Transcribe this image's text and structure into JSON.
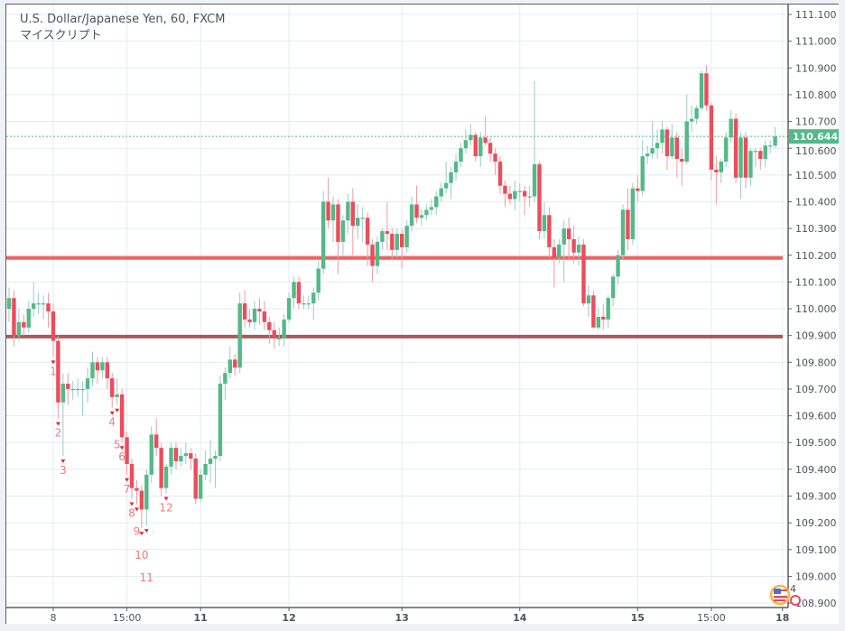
{
  "header": {
    "title": "U.S. Dollar/Japanese Yen, 60, FXCM",
    "script_name": "マイスクリプト"
  },
  "events_badge": {
    "count": "4",
    "icon": "us-flag-economic-event-icon"
  },
  "colors": {
    "up": "#53b987",
    "down": "#eb4d5c",
    "support_line": "#f05050",
    "lower_line": "#a04a4a",
    "grid": "#e3ecf3",
    "last_price": "#53b987"
  },
  "chart_data": {
    "type": "candlestick",
    "title": "U.S. Dollar/Japanese Yen, 60, FXCM",
    "ylim": [
      108.9,
      111.1
    ],
    "grid": true,
    "y_ticks": [
      "111.100",
      "111.000",
      "110.900",
      "110.800",
      "110.700",
      "110.600",
      "110.500",
      "110.400",
      "110.300",
      "110.200",
      "110.100",
      "110.000",
      "109.900",
      "109.800",
      "109.700",
      "109.600",
      "109.500",
      "109.400",
      "109.300",
      "109.200",
      "109.100",
      "109.000",
      "108.900"
    ],
    "x_ticks": [
      {
        "label": "8",
        "bar": 9,
        "bold": false
      },
      {
        "label": "15:00",
        "bar": 24,
        "bold": false
      },
      {
        "label": "11",
        "bar": 39,
        "bold": true
      },
      {
        "label": "12",
        "bar": 57,
        "bold": true
      },
      {
        "label": "13",
        "bar": 80,
        "bold": true
      },
      {
        "label": "14",
        "bar": 104,
        "bold": true
      },
      {
        "label": "15",
        "bar": 128,
        "bold": true
      },
      {
        "label": "15:00",
        "bar": 143,
        "bold": false
      },
      {
        "label": "18",
        "bar": 157.5,
        "bold": true
      }
    ],
    "last_price": "110.644",
    "horizontal_lines": [
      {
        "price": 110.19,
        "color": "#f05050"
      },
      {
        "price": 109.896,
        "color": "#a04a4a"
      }
    ],
    "signals": [
      {
        "label": "1",
        "bar": 9
      },
      {
        "label": "2",
        "bar": 10
      },
      {
        "label": "3",
        "bar": 11
      },
      {
        "label": "4",
        "bar": 21
      },
      {
        "label": "5",
        "bar": 22
      },
      {
        "label": "6",
        "bar": 23
      },
      {
        "label": "7",
        "bar": 24
      },
      {
        "label": "8",
        "bar": 25
      },
      {
        "label": "9",
        "bar": 26
      },
      {
        "label": "10",
        "bar": 27
      },
      {
        "label": "11",
        "bar": 28
      },
      {
        "label": "12",
        "bar": 32
      }
    ],
    "candles_ohlc": [
      [
        110.0,
        110.08,
        109.95,
        110.04
      ],
      [
        110.04,
        110.07,
        109.86,
        109.9
      ],
      [
        109.9,
        110.0,
        109.88,
        109.95
      ],
      [
        109.95,
        109.98,
        109.9,
        109.93
      ],
      [
        109.93,
        110.03,
        109.91,
        110.0
      ],
      [
        110.0,
        110.1,
        109.97,
        110.02
      ],
      [
        110.02,
        110.06,
        109.98,
        110.02
      ],
      [
        110.02,
        110.05,
        109.96,
        110.02
      ],
      [
        110.02,
        110.06,
        109.93,
        109.99
      ],
      [
        109.99,
        110.02,
        109.82,
        109.88
      ],
      [
        109.88,
        109.9,
        109.59,
        109.65
      ],
      [
        109.65,
        109.76,
        109.45,
        109.72
      ],
      [
        109.72,
        109.76,
        109.64,
        109.7
      ],
      [
        109.7,
        109.73,
        109.66,
        109.7
      ],
      [
        109.7,
        109.74,
        109.67,
        109.7
      ],
      [
        109.7,
        109.73,
        109.6,
        109.7
      ],
      [
        109.7,
        109.78,
        109.65,
        109.74
      ],
      [
        109.74,
        109.84,
        109.71,
        109.8
      ],
      [
        109.8,
        109.82,
        109.72,
        109.77
      ],
      [
        109.77,
        109.82,
        109.74,
        109.8
      ],
      [
        109.8,
        109.82,
        109.7,
        109.74
      ],
      [
        109.74,
        109.76,
        109.63,
        109.67
      ],
      [
        109.67,
        109.74,
        109.64,
        109.68
      ],
      [
        109.68,
        109.7,
        109.5,
        109.52
      ],
      [
        109.52,
        109.54,
        109.38,
        109.42
      ],
      [
        109.42,
        109.44,
        109.29,
        109.33
      ],
      [
        109.33,
        109.36,
        109.27,
        109.32
      ],
      [
        109.32,
        109.34,
        109.18,
        109.25
      ],
      [
        109.25,
        109.4,
        109.19,
        109.38
      ],
      [
        109.38,
        109.56,
        109.35,
        109.53
      ],
      [
        109.53,
        109.59,
        109.45,
        109.48
      ],
      [
        109.48,
        109.5,
        109.3,
        109.33
      ],
      [
        109.33,
        109.42,
        109.31,
        109.41
      ],
      [
        109.41,
        109.5,
        109.38,
        109.48
      ],
      [
        109.48,
        109.5,
        109.4,
        109.43
      ],
      [
        109.43,
        109.48,
        109.41,
        109.45
      ],
      [
        109.45,
        109.5,
        109.42,
        109.46
      ],
      [
        109.46,
        109.48,
        109.4,
        109.44
      ],
      [
        109.44,
        109.46,
        109.27,
        109.29
      ],
      [
        109.29,
        109.4,
        109.28,
        109.38
      ],
      [
        109.38,
        109.47,
        109.36,
        109.42
      ],
      [
        109.42,
        109.51,
        109.35,
        109.44
      ],
      [
        109.44,
        109.47,
        109.33,
        109.45
      ],
      [
        109.45,
        109.75,
        109.43,
        109.72
      ],
      [
        109.72,
        109.78,
        109.66,
        109.76
      ],
      [
        109.76,
        109.86,
        109.74,
        109.81
      ],
      [
        109.81,
        109.83,
        109.75,
        109.78
      ],
      [
        109.78,
        110.06,
        109.76,
        110.02
      ],
      [
        110.02,
        110.07,
        109.93,
        109.96
      ],
      [
        109.96,
        110.0,
        109.93,
        109.95
      ],
      [
        109.95,
        110.03,
        109.92,
        110.0
      ],
      [
        110.0,
        110.04,
        109.94,
        109.99
      ],
      [
        109.99,
        110.03,
        109.92,
        109.95
      ],
      [
        109.95,
        109.97,
        109.87,
        109.92
      ],
      [
        109.92,
        109.95,
        109.85,
        109.89
      ],
      [
        109.89,
        109.93,
        109.86,
        109.89
      ],
      [
        109.89,
        109.98,
        109.86,
        109.96
      ],
      [
        109.96,
        110.06,
        109.95,
        110.04
      ],
      [
        110.04,
        110.12,
        110.0,
        110.1
      ],
      [
        110.1,
        110.12,
        110.0,
        110.02
      ],
      [
        110.02,
        110.05,
        110.0,
        110.02
      ],
      [
        110.02,
        110.05,
        110.0,
        110.02
      ],
      [
        110.02,
        110.08,
        109.96,
        110.06
      ],
      [
        110.06,
        110.18,
        110.03,
        110.15
      ],
      [
        110.15,
        110.44,
        110.13,
        110.4
      ],
      [
        110.4,
        110.49,
        110.3,
        110.33
      ],
      [
        110.33,
        110.42,
        110.25,
        110.39
      ],
      [
        110.39,
        110.41,
        110.13,
        110.25
      ],
      [
        110.25,
        110.35,
        110.2,
        110.33
      ],
      [
        110.33,
        110.43,
        110.28,
        110.4
      ],
      [
        110.4,
        110.45,
        110.2,
        110.31
      ],
      [
        110.31,
        110.39,
        110.26,
        110.34
      ],
      [
        110.34,
        110.38,
        110.25,
        110.34
      ],
      [
        110.34,
        110.36,
        110.16,
        110.24
      ],
      [
        110.24,
        110.26,
        110.1,
        110.16
      ],
      [
        110.16,
        110.27,
        110.13,
        110.25
      ],
      [
        110.25,
        110.3,
        110.22,
        110.29
      ],
      [
        110.29,
        110.4,
        110.22,
        110.28
      ],
      [
        110.28,
        110.3,
        110.18,
        110.22
      ],
      [
        110.22,
        110.3,
        110.19,
        110.28
      ],
      [
        110.28,
        110.3,
        110.15,
        110.23
      ],
      [
        110.23,
        110.33,
        110.21,
        110.31
      ],
      [
        110.31,
        110.42,
        110.29,
        110.39
      ],
      [
        110.39,
        110.46,
        110.32,
        110.34
      ],
      [
        110.34,
        110.37,
        110.31,
        110.35
      ],
      [
        110.35,
        110.39,
        110.33,
        110.37
      ],
      [
        110.37,
        110.41,
        110.35,
        110.38
      ],
      [
        110.38,
        110.44,
        110.35,
        110.42
      ],
      [
        110.42,
        110.47,
        110.4,
        110.45
      ],
      [
        110.45,
        110.55,
        110.43,
        110.47
      ],
      [
        110.47,
        110.53,
        110.41,
        110.51
      ],
      [
        110.51,
        110.58,
        110.48,
        110.55
      ],
      [
        110.55,
        110.62,
        110.53,
        110.6
      ],
      [
        110.6,
        110.67,
        110.58,
        110.63
      ],
      [
        110.63,
        110.69,
        110.61,
        110.65
      ],
      [
        110.65,
        110.66,
        110.55,
        110.57
      ],
      [
        110.57,
        110.66,
        110.53,
        110.64
      ],
      [
        110.64,
        110.72,
        110.61,
        110.62
      ],
      [
        110.62,
        110.64,
        110.55,
        110.58
      ],
      [
        110.58,
        110.6,
        110.5,
        110.55
      ],
      [
        110.55,
        110.57,
        110.43,
        110.46
      ],
      [
        110.46,
        110.48,
        110.38,
        110.43
      ],
      [
        110.43,
        110.46,
        110.39,
        110.41
      ],
      [
        110.41,
        110.48,
        110.37,
        110.44
      ],
      [
        110.44,
        110.47,
        110.4,
        110.44
      ],
      [
        110.44,
        110.46,
        110.35,
        110.42
      ],
      [
        110.42,
        110.46,
        110.38,
        110.42
      ],
      [
        110.42,
        110.85,
        110.4,
        110.54
      ],
      [
        110.54,
        110.55,
        110.26,
        110.29
      ],
      [
        110.29,
        110.4,
        110.26,
        110.35
      ],
      [
        110.35,
        110.38,
        110.19,
        110.23
      ],
      [
        110.23,
        110.26,
        110.08,
        110.19
      ],
      [
        110.19,
        110.26,
        110.17,
        110.24
      ],
      [
        110.24,
        110.33,
        110.1,
        110.3
      ],
      [
        110.3,
        110.34,
        110.18,
        110.26
      ],
      [
        110.26,
        110.31,
        110.17,
        110.21
      ],
      [
        110.21,
        110.27,
        110.16,
        110.24
      ],
      [
        110.24,
        110.26,
        110.01,
        110.02
      ],
      [
        110.02,
        110.09,
        109.97,
        110.05
      ],
      [
        110.05,
        110.07,
        109.93,
        109.93
      ],
      [
        109.93,
        110.0,
        109.92,
        109.97
      ],
      [
        109.97,
        110.02,
        109.92,
        109.96
      ],
      [
        109.96,
        110.05,
        109.93,
        110.04
      ],
      [
        110.04,
        110.13,
        110.01,
        110.12
      ],
      [
        110.12,
        110.22,
        110.09,
        110.2
      ],
      [
        110.2,
        110.39,
        110.18,
        110.37
      ],
      [
        110.37,
        110.45,
        110.22,
        110.26
      ],
      [
        110.26,
        110.47,
        110.24,
        110.45
      ],
      [
        110.45,
        110.5,
        110.4,
        110.44
      ],
      [
        110.44,
        110.63,
        110.42,
        110.57
      ],
      [
        110.57,
        110.61,
        110.54,
        110.58
      ],
      [
        110.58,
        110.7,
        110.56,
        110.6
      ],
      [
        110.6,
        110.67,
        110.56,
        110.62
      ],
      [
        110.62,
        110.7,
        110.58,
        110.67
      ],
      [
        110.67,
        110.68,
        110.52,
        110.57
      ],
      [
        110.57,
        110.69,
        110.56,
        110.64
      ],
      [
        110.64,
        110.66,
        110.49,
        110.56
      ],
      [
        110.56,
        110.6,
        110.46,
        110.55
      ],
      [
        110.55,
        110.8,
        110.54,
        110.7
      ],
      [
        110.7,
        110.76,
        110.66,
        110.71
      ],
      [
        110.71,
        110.76,
        110.69,
        110.75
      ],
      [
        110.75,
        110.89,
        110.74,
        110.88
      ],
      [
        110.88,
        110.91,
        110.74,
        110.76
      ],
      [
        110.76,
        110.77,
        110.48,
        110.52
      ],
      [
        110.52,
        110.57,
        110.39,
        110.51
      ],
      [
        110.51,
        110.56,
        110.47,
        110.55
      ],
      [
        110.55,
        110.66,
        110.53,
        110.64
      ],
      [
        110.64,
        110.74,
        110.62,
        110.71
      ],
      [
        110.71,
        110.73,
        110.47,
        110.49
      ],
      [
        110.49,
        110.66,
        110.41,
        110.64
      ],
      [
        110.64,
        110.66,
        110.45,
        110.49
      ],
      [
        110.49,
        110.6,
        110.46,
        110.59
      ],
      [
        110.59,
        110.6,
        110.53,
        110.59
      ],
      [
        110.59,
        110.6,
        110.52,
        110.56
      ],
      [
        110.56,
        110.63,
        110.53,
        110.61
      ],
      [
        110.61,
        110.63,
        110.58,
        110.61
      ],
      [
        110.61,
        110.68,
        110.6,
        110.644
      ]
    ]
  }
}
